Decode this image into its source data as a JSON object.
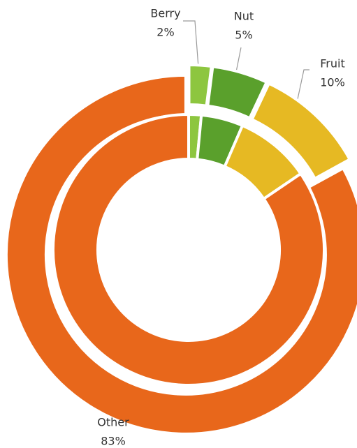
{
  "chart_data": {
    "type": "donut",
    "categories": [
      "Berry",
      "Nut",
      "Fruit",
      "Other"
    ],
    "colors": [
      "#8dc63f",
      "#5aa02c",
      "#e6b923",
      "#e8671b"
    ],
    "series": [
      {
        "values": [
          2,
          5,
          10,
          83
        ],
        "value_labels": [
          "2%",
          "5%",
          "10%",
          "83%"
        ]
      },
      {
        "values": [
          1.5,
          5,
          9,
          84.5
        ]
      }
    ]
  }
}
